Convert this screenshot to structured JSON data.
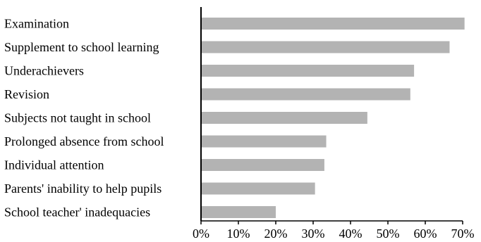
{
  "chart_data": {
    "type": "bar",
    "orientation": "horizontal",
    "categories": [
      "Examination",
      "Supplement to school learning",
      "Underachievers",
      "Revision",
      "Subjects not taught in school",
      "Prolonged absence from school",
      "Individual attention",
      "Parents' inability to help pupils",
      "School teacher' inadequacies"
    ],
    "values": [
      70.5,
      66.5,
      57.0,
      56.0,
      44.5,
      33.5,
      33.0,
      30.5,
      20.0
    ],
    "xlim": [
      0,
      70
    ],
    "x_ticks": [
      "0%",
      "10%",
      "20%",
      "30%",
      "40%",
      "50%",
      "60%",
      "70%"
    ],
    "grid": false,
    "legend": "none",
    "title": "",
    "xlabel": "",
    "ylabel": "",
    "bar_color": "#b3b3b3"
  }
}
